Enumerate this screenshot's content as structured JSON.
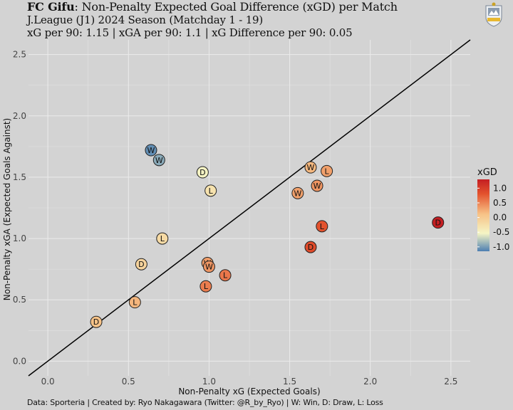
{
  "header": {
    "team": "FC Gifu",
    "title_rest": ": Non-Penalty Expected Goal Difference (xGD) per Match",
    "subtitle1": "J.League (J1) 2024 Season (Matchday 1 - 19)",
    "subtitle2": "xG per 90: 1.15 | xGA per 90: 1.1 | xG Difference per 90: 0.05"
  },
  "caption": "Data: Sporteria | Created by: Ryo Nakagawara (Twitter: @R_by_Ryo) | W: Win, D: Draw, L: Loss",
  "logo_icon": "team-crest-icon",
  "chart_data": {
    "type": "scatter",
    "xlabel": "Non-Penalty xG (Expected Goals)",
    "ylabel": "Non-Penalty xGA (Expected Goals Against)",
    "xlim": [
      -0.12,
      2.62
    ],
    "ylim": [
      -0.12,
      2.62
    ],
    "xticks": [
      "0.0",
      "0.5",
      "1.0",
      "1.5",
      "2.0",
      "2.5"
    ],
    "yticks": [
      "0.0",
      "0.5",
      "1.0",
      "1.5",
      "2.0",
      "2.5"
    ],
    "diagonal": true,
    "grid": true,
    "legend": {
      "title": "xGD",
      "placement": "right",
      "labels": [
        "1.0",
        "0.5",
        "0.0",
        "-0.5",
        "-1.0"
      ],
      "range": [
        -1.15,
        1.3
      ],
      "colors": [
        "#4d7fb2",
        "#f5f5c5",
        "#f7c186",
        "#e3522d",
        "#c41e22"
      ]
    },
    "points": [
      {
        "x": 0.3,
        "y": 0.32,
        "result": "D"
      },
      {
        "x": 0.54,
        "y": 0.48,
        "result": "L"
      },
      {
        "x": 0.58,
        "y": 0.79,
        "result": "D"
      },
      {
        "x": 0.71,
        "y": 1.0,
        "result": "L"
      },
      {
        "x": 0.64,
        "y": 1.72,
        "result": "W"
      },
      {
        "x": 0.69,
        "y": 1.64,
        "result": "W"
      },
      {
        "x": 0.96,
        "y": 1.54,
        "result": "D"
      },
      {
        "x": 1.01,
        "y": 1.39,
        "result": "L"
      },
      {
        "x": 0.98,
        "y": 0.61,
        "result": "L"
      },
      {
        "x": 0.99,
        "y": 0.8,
        "result": "W"
      },
      {
        "x": 1.0,
        "y": 0.77,
        "result": "W"
      },
      {
        "x": 1.1,
        "y": 0.7,
        "result": "L"
      },
      {
        "x": 1.55,
        "y": 1.37,
        "result": "W"
      },
      {
        "x": 1.63,
        "y": 1.58,
        "result": "W"
      },
      {
        "x": 1.67,
        "y": 1.43,
        "result": "W"
      },
      {
        "x": 1.73,
        "y": 1.55,
        "result": "L"
      },
      {
        "x": 1.7,
        "y": 1.1,
        "result": "L"
      },
      {
        "x": 1.63,
        "y": 0.93,
        "result": "D"
      },
      {
        "x": 2.42,
        "y": 1.13,
        "result": "D"
      }
    ]
  }
}
